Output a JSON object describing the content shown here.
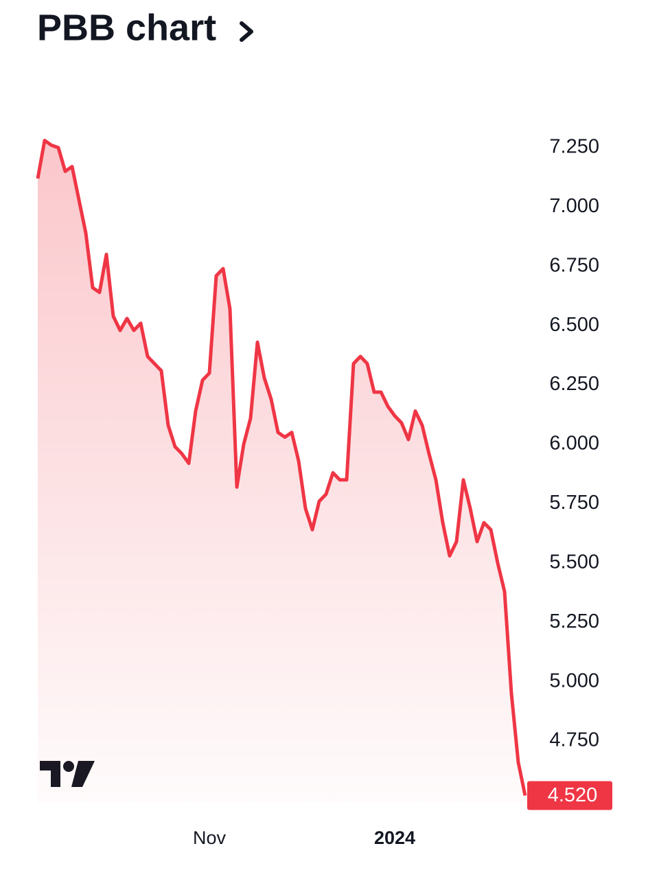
{
  "chart_data": {
    "type": "line",
    "title": "PBB chart",
    "categories": [
      null,
      null,
      null,
      null,
      null,
      null,
      null,
      null,
      null,
      null,
      null,
      null,
      null,
      null,
      null,
      null,
      null,
      null,
      null,
      null,
      null,
      null,
      null,
      null,
      null,
      "Nov",
      null,
      null,
      null,
      null,
      null,
      null,
      null,
      null,
      null,
      null,
      null,
      null,
      null,
      null,
      null,
      null,
      null,
      null,
      null,
      null,
      null,
      null,
      null,
      null,
      null,
      null,
      "2024",
      null,
      null,
      null,
      null,
      null,
      null,
      null,
      null,
      null,
      null,
      null,
      null,
      null,
      null,
      null,
      null,
      null,
      null,
      null
    ],
    "series": [
      {
        "name": "PBB",
        "color": "#ef3645",
        "values": [
          7.12,
          7.28,
          7.26,
          7.25,
          7.15,
          7.17,
          7.03,
          6.89,
          6.66,
          6.64,
          6.8,
          6.54,
          6.48,
          6.53,
          6.48,
          6.51,
          6.37,
          6.34,
          6.31,
          6.08,
          5.99,
          5.96,
          5.92,
          6.14,
          6.27,
          6.3,
          6.71,
          6.74,
          6.57,
          5.82,
          6.0,
          6.11,
          6.43,
          6.28,
          6.19,
          6.05,
          6.03,
          6.05,
          5.93,
          5.73,
          5.64,
          5.76,
          5.79,
          5.88,
          5.85,
          5.85,
          6.34,
          6.37,
          6.34,
          6.22,
          6.22,
          6.16,
          6.12,
          6.09,
          6.02,
          6.14,
          6.08,
          5.96,
          5.85,
          5.67,
          5.53,
          5.59,
          5.85,
          5.73,
          5.59,
          5.67,
          5.64,
          5.5,
          5.38,
          4.95,
          4.66,
          4.52
        ]
      }
    ],
    "ylim": [
      4.49,
      7.35
    ],
    "yticks": [
      {
        "value": 7.25,
        "label": "7.250"
      },
      {
        "value": 7.0,
        "label": "7.000"
      },
      {
        "value": 6.75,
        "label": "6.750"
      },
      {
        "value": 6.5,
        "label": "6.500"
      },
      {
        "value": 6.25,
        "label": "6.250"
      },
      {
        "value": 6.0,
        "label": "6.000"
      },
      {
        "value": 5.75,
        "label": "5.750"
      },
      {
        "value": 5.5,
        "label": "5.500"
      },
      {
        "value": 5.25,
        "label": "5.250"
      },
      {
        "value": 5.0,
        "label": "5.000"
      },
      {
        "value": 4.75,
        "label": "4.750"
      }
    ],
    "grid": false,
    "last_price": {
      "value": 4.52,
      "label": "4.520"
    }
  }
}
